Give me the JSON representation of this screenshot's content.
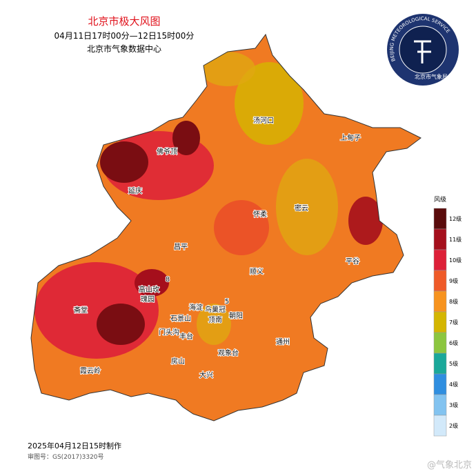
{
  "header": {
    "title": "北京市极大风图",
    "subtitle": "04月11日17时00分—12日15时00分",
    "source": "北京市气象数据中心"
  },
  "logo": {
    "text_en": "BEIJING METEOROLOGICAL SERVICE",
    "text_cn": "北京市气象局"
  },
  "places": [
    "汤河口",
    "上甸子",
    "佛爷顶",
    "延庆",
    "怀柔",
    "密云",
    "昌平",
    "平谷",
    "顺义",
    "高山玫",
    "瑰园",
    "海淀",
    "鸟巢冠",
    "顶南",
    "斋堂",
    "石景山",
    "朝阳",
    "门头沟",
    "丰台",
    "通州",
    "观象台",
    "房山",
    "霞云岭",
    "大兴",
    "8",
    "5"
  ],
  "legend": {
    "title": "风级",
    "levels": [
      {
        "label": "12级",
        "color": "#5a0c0c"
      },
      {
        "label": "11级",
        "color": "#a50f1c"
      },
      {
        "label": "10级",
        "color": "#dd2038"
      },
      {
        "label": "9级",
        "color": "#ef5a28"
      },
      {
        "label": "8级",
        "color": "#f7931e"
      },
      {
        "label": "7级",
        "color": "#d4b600"
      },
      {
        "label": "6级",
        "color": "#8cc63f"
      },
      {
        "label": "5级",
        "color": "#1aa89a"
      },
      {
        "label": "4级",
        "color": "#2f8ee0"
      },
      {
        "label": "3级",
        "color": "#82c3f0"
      },
      {
        "label": "2级",
        "color": "#d2e9fa"
      }
    ]
  },
  "footer": {
    "made": "2025年04月12日15时制作",
    "approval": "审图号：GS(2017)3320号"
  },
  "watermark": "@气象北京"
}
